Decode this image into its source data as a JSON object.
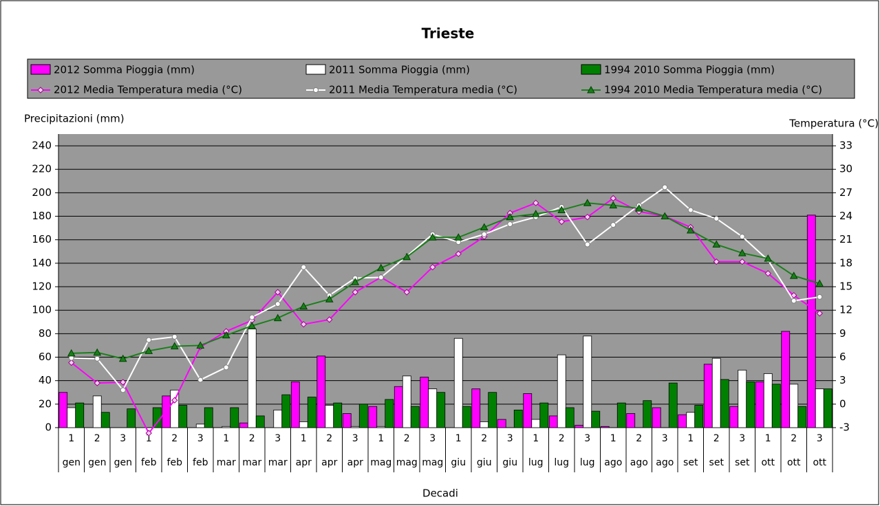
{
  "chart_data": {
    "type": "combo",
    "title": "Trieste",
    "y_label": "Precipitazioni (mm)",
    "y2_label": "Temperatura (°C)",
    "x_label": "Decadi",
    "categories": [
      "1",
      "2",
      "3",
      "1",
      "2",
      "3",
      "1",
      "2",
      "3",
      "1",
      "2",
      "3",
      "1",
      "2",
      "3",
      "1",
      "2",
      "3",
      "1",
      "2",
      "3",
      "1",
      "2",
      "3",
      "1",
      "2",
      "3",
      "1",
      "2",
      "3"
    ],
    "category_groups": [
      "gen",
      "gen",
      "gen",
      "feb",
      "feb",
      "feb",
      "mar",
      "mar",
      "mar",
      "apr",
      "apr",
      "apr",
      "mag",
      "mag",
      "mag",
      "giu",
      "giu",
      "giu",
      "lug",
      "lug",
      "lug",
      "ago",
      "ago",
      "ago",
      "set",
      "set",
      "set",
      "ott",
      "ott",
      "ott"
    ],
    "ylim": [
      0,
      250
    ],
    "yticks": [
      0,
      20,
      40,
      60,
      80,
      100,
      120,
      140,
      160,
      180,
      200,
      220,
      240
    ],
    "y2lim": [
      -3,
      34.5
    ],
    "y2ticks": [
      -3,
      0,
      3,
      6,
      9,
      12,
      15,
      18,
      21,
      24,
      27,
      30,
      33
    ],
    "grid": true,
    "series": [
      {
        "name": "2012 Somma Pioggia (mm)",
        "type": "bar",
        "color": "#ff00ff",
        "values": [
          30,
          0,
          0,
          0,
          27,
          0,
          0,
          4,
          0,
          39,
          61,
          12,
          18,
          35,
          43,
          0,
          33,
          7,
          29,
          10,
          2,
          1,
          12,
          17,
          11,
          54,
          18,
          39,
          82,
          181
        ]
      },
      {
        "name": "2011 Somma Pioggia (mm)",
        "type": "bar",
        "color": "#ffffff",
        "values": [
          17,
          27,
          0,
          0,
          32,
          3,
          1,
          84,
          15,
          5,
          19,
          1,
          1,
          44,
          33,
          76,
          5,
          0,
          7,
          62,
          78,
          0,
          0,
          0,
          13,
          59,
          49,
          46,
          37,
          33
        ]
      },
      {
        "name": "1994 2010 Somma Pioggia (mm)",
        "type": "bar",
        "color": "#008000",
        "values": [
          21,
          13,
          16,
          17,
          19,
          17,
          17,
          10,
          28,
          26,
          21,
          20,
          24,
          18,
          30,
          18,
          30,
          15,
          21,
          17,
          14,
          21,
          23,
          38,
          19,
          41,
          39,
          37,
          18,
          33
        ]
      },
      {
        "name": "2012 Media Temperatura media (°C)",
        "type": "line",
        "axis": "y2",
        "marker": "diamond",
        "color": "#ff00ff",
        "marker_fill": "#ffccff",
        "values": [
          5.3,
          2.7,
          2.8,
          -3.7,
          0.5,
          7.3,
          9.3,
          10.7,
          14.3,
          10.2,
          10.8,
          14.3,
          16.2,
          14.3,
          17.5,
          19.2,
          21.4,
          24.4,
          25.7,
          23.3,
          23.9,
          26.3,
          24.6,
          24.0,
          22.6,
          18.2,
          18.2,
          16.7,
          13.9,
          11.6
        ]
      },
      {
        "name": "2011 Media Temperatura media (°C)",
        "type": "line",
        "axis": "y2",
        "marker": "circle",
        "color": "#ffffff",
        "marker_fill": "#ffffff",
        "values": [
          5.9,
          5.8,
          1.8,
          8.2,
          8.6,
          3.1,
          4.7,
          11.1,
          12.8,
          17.5,
          13.9,
          16.1,
          16.2,
          18.9,
          21.7,
          20.7,
          21.7,
          23.0,
          23.9,
          25.2,
          20.4,
          22.9,
          25.4,
          27.7,
          24.8,
          23.7,
          21.4,
          18.4,
          13.2,
          13.7
        ]
      },
      {
        "name": "1994 2010 Media Temperatura media (°C)",
        "type": "line",
        "axis": "y2",
        "marker": "triangle",
        "color": "#1a7f1a",
        "marker_fill": "#1a7f1a",
        "values": [
          6.5,
          6.6,
          5.8,
          6.8,
          7.4,
          7.5,
          8.8,
          10.0,
          11.0,
          12.5,
          13.4,
          15.6,
          17.4,
          18.8,
          21.3,
          21.3,
          22.6,
          23.9,
          24.3,
          24.8,
          25.7,
          25.4,
          25.0,
          24.0,
          22.2,
          20.4,
          19.3,
          18.6,
          16.4,
          15.4
        ]
      }
    ]
  }
}
